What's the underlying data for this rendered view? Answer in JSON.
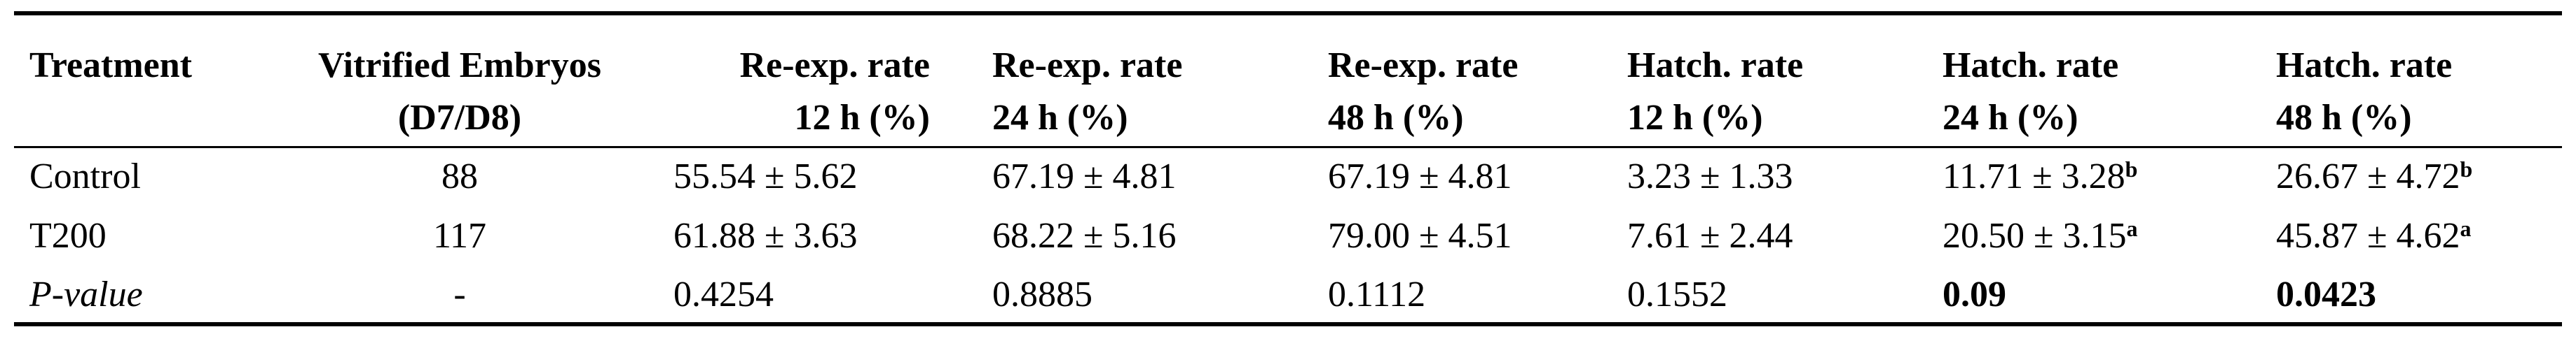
{
  "table": {
    "headers": [
      [
        "Treatment"
      ],
      [
        "Vitrified Embryos",
        "(D7/D8)"
      ],
      [
        "Re-exp. rate",
        "12 h (%)"
      ],
      [
        "Re-exp. rate",
        "24 h (%)"
      ],
      [
        "Re-exp. rate",
        "48 h (%)"
      ],
      [
        "Hatch. rate",
        "12 h (%)"
      ],
      [
        "Hatch. rate",
        "24 h (%)"
      ],
      [
        "Hatch. rate",
        "48 h (%)"
      ]
    ],
    "rows": [
      [
        "Control",
        "88",
        "55.54 ± 5.62",
        "67.19 ± 4.81",
        "67.19 ± 4.81",
        "3.23 ± 1.33",
        {
          "text": "11.71 ± 3.28",
          "sup": "b"
        },
        {
          "text": "26.67 ± 4.72",
          "sup": "b"
        }
      ],
      [
        "T200",
        "117",
        "61.88 ± 3.63",
        "68.22 ± 5.16",
        "79.00 ± 4.51",
        "7.61 ± 2.44",
        {
          "text": "20.50 ± 3.15",
          "sup": "a"
        },
        {
          "text": "45.87 ± 4.62",
          "sup": "a"
        }
      ],
      [
        {
          "text": "P-value",
          "italic": true
        },
        "-",
        "0.4254",
        "0.8885",
        "0.1112",
        "0.1552",
        {
          "text": "0.09",
          "bold": true
        },
        {
          "text": "0.0423",
          "bold": true
        }
      ]
    ]
  }
}
